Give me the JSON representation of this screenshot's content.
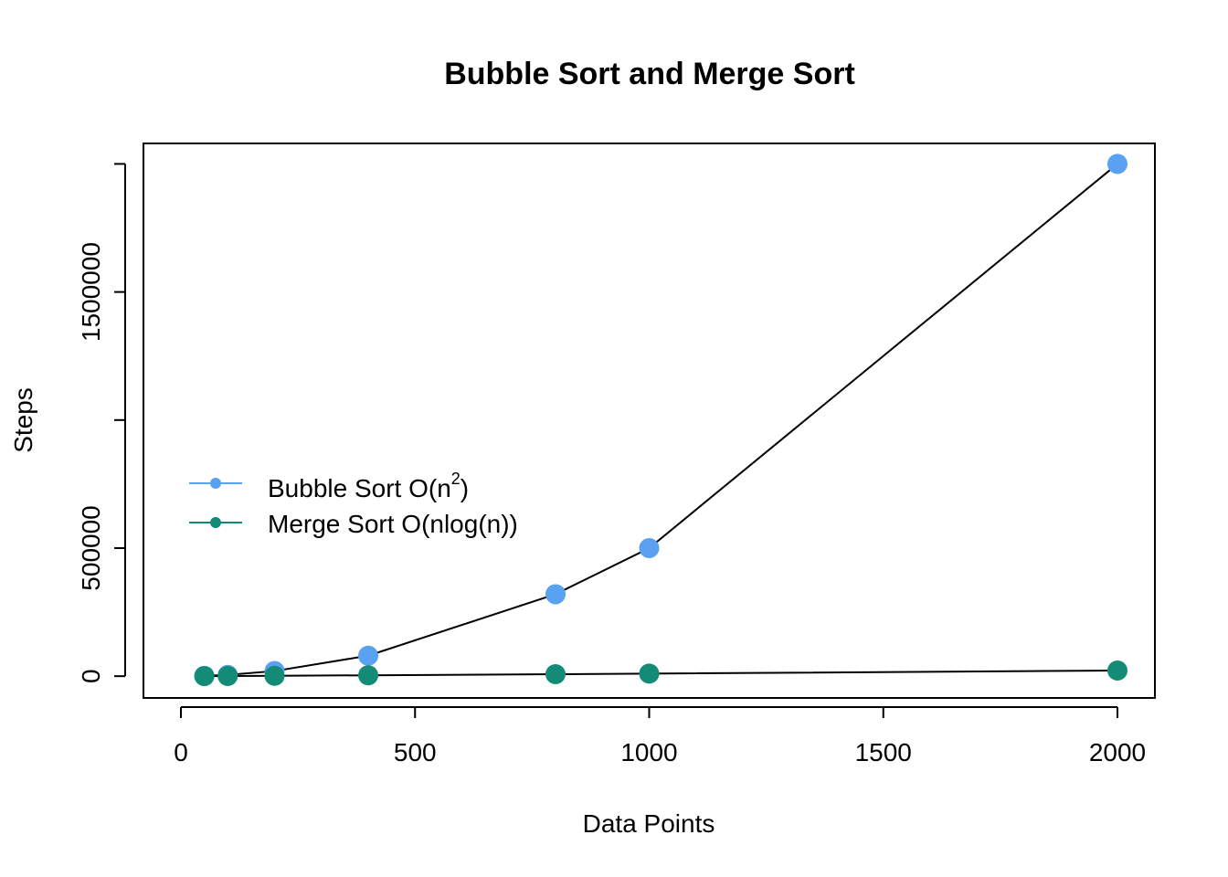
{
  "chart_data": {
    "type": "scatter",
    "title": "Bubble Sort and Merge Sort",
    "xlabel": "Data Points",
    "ylabel": "Steps",
    "xlim": [
      -80,
      2080
    ],
    "ylim": [
      -85000,
      2080000
    ],
    "x_ticks": [
      0,
      500,
      1000,
      1500,
      2000
    ],
    "y_ticks": [
      0,
      500000,
      1000000,
      1500000,
      2000000
    ],
    "y_tick_labels": [
      "0",
      "500000",
      "",
      "1500000",
      ""
    ],
    "legend_position": "center-left",
    "grid": false,
    "series": [
      {
        "name": "Bubble Sort O(n^2)",
        "legend_main": "Bubble Sort O",
        "legend_tail": ")",
        "legend_paren": "(n",
        "legend_sup": "2",
        "color": "#5aa1f2",
        "x": [
          50,
          100,
          200,
          400,
          800,
          1000,
          2000
        ],
        "y": [
          1250,
          5000,
          20000,
          80000,
          320000,
          500000,
          2000000
        ]
      },
      {
        "name": "Merge Sort O(nlog(n))",
        "legend_main": "Merge Sort O",
        "legend_tail": "(nlog(n))",
        "color": "#138b77",
        "x": [
          50,
          100,
          200,
          400,
          800,
          1000,
          2000
        ],
        "y": [
          282,
          664,
          1529,
          3458,
          7715,
          9966,
          21932
        ]
      }
    ],
    "line_color": "#000000"
  }
}
